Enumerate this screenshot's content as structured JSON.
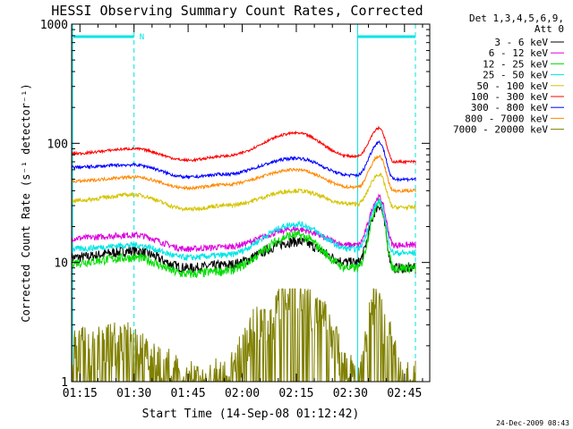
{
  "chart_data": {
    "type": "line",
    "title": "HESSI Observing Summary Count Rates, Corrected",
    "ylabel": "Corrected Count Rate (s⁻¹ detector⁻¹)",
    "xlabel": "Start Time (14-Sep-08 01:12:42)",
    "x_scale": "time",
    "y_scale": "log",
    "xlim": [
      "01:12:42",
      "02:52:00"
    ],
    "ylim": [
      1,
      1000
    ],
    "x_ticks": [
      "01:15",
      "01:30",
      "01:45",
      "02:00",
      "02:15",
      "02:30",
      "02:45"
    ],
    "x_tick_minutes": [
      75,
      90,
      105,
      120,
      135,
      150,
      165
    ],
    "y_ticks": [
      "1",
      "10",
      "100",
      "1000"
    ],
    "y_tick_values": [
      1,
      10,
      100,
      1000
    ],
    "legend_header": [
      "Det 1,3,4,5,6,9,",
      "Att 0"
    ],
    "legend_position": "right",
    "time_start_minutes": 72.7,
    "time_end_minutes": 172,
    "series": [
      {
        "name": "3 - 6 keV",
        "color": "#000000",
        "anchors": [
          [
            72.7,
            11
          ],
          [
            90,
            12.5
          ],
          [
            105,
            9
          ],
          [
            115,
            9.5
          ],
          [
            135,
            15
          ],
          [
            150,
            10
          ],
          [
            152,
            10
          ],
          [
            158,
            30
          ],
          [
            162,
            9
          ],
          [
            172,
            9
          ]
        ],
        "noise": 0.1
      },
      {
        "name": "6 - 12 keV",
        "color": "#dd00dd",
        "anchors": [
          [
            72.7,
            16
          ],
          [
            90,
            17
          ],
          [
            105,
            13
          ],
          [
            115,
            13.5
          ],
          [
            135,
            19
          ],
          [
            150,
            14
          ],
          [
            152,
            14
          ],
          [
            158,
            35
          ],
          [
            162,
            14
          ],
          [
            172,
            14
          ]
        ],
        "noise": 0.06
      },
      {
        "name": "12 - 25 keV",
        "color": "#00dd00",
        "anchors": [
          [
            72.7,
            10
          ],
          [
            90,
            11
          ],
          [
            105,
            8
          ],
          [
            115,
            8.5
          ],
          [
            135,
            17
          ],
          [
            150,
            9
          ],
          [
            152,
            9
          ],
          [
            158,
            32
          ],
          [
            162,
            9
          ],
          [
            172,
            9
          ]
        ],
        "noise": 0.09
      },
      {
        "name": "25 - 50 keV",
        "color": "#00e5e5",
        "anchors": [
          [
            72.7,
            13
          ],
          [
            90,
            14
          ],
          [
            105,
            11
          ],
          [
            115,
            11.5
          ],
          [
            135,
            21
          ],
          [
            150,
            13
          ],
          [
            152,
            13
          ],
          [
            158,
            32
          ],
          [
            162,
            12
          ],
          [
            172,
            12
          ]
        ],
        "noise": 0.06
      },
      {
        "name": "50 - 100 keV",
        "color": "#d4c400",
        "anchors": [
          [
            72.7,
            33
          ],
          [
            90,
            37
          ],
          [
            105,
            28
          ],
          [
            115,
            30
          ],
          [
            135,
            40
          ],
          [
            150,
            31
          ],
          [
            152,
            31
          ],
          [
            158,
            55
          ],
          [
            162,
            29
          ],
          [
            172,
            29
          ]
        ],
        "noise": 0.04
      },
      {
        "name": "100 - 300 keV",
        "color": "#ff0000",
        "anchors": [
          [
            72.7,
            82
          ],
          [
            90,
            90
          ],
          [
            105,
            72
          ],
          [
            115,
            78
          ],
          [
            135,
            122
          ],
          [
            150,
            78
          ],
          [
            152,
            78
          ],
          [
            158,
            135
          ],
          [
            162,
            70
          ],
          [
            172,
            70
          ]
        ],
        "noise": 0.025
      },
      {
        "name": "300 - 800 keV",
        "color": "#0000ff",
        "anchors": [
          [
            72.7,
            63
          ],
          [
            90,
            66
          ],
          [
            105,
            52
          ],
          [
            115,
            55
          ],
          [
            135,
            75
          ],
          [
            150,
            54
          ],
          [
            152,
            54
          ],
          [
            158,
            102
          ],
          [
            162,
            50
          ],
          [
            172,
            50
          ]
        ],
        "noise": 0.03
      },
      {
        "name": "800 - 7000 keV",
        "color": "#ff8800",
        "anchors": [
          [
            72.7,
            48
          ],
          [
            90,
            52
          ],
          [
            105,
            42
          ],
          [
            115,
            45
          ],
          [
            135,
            60
          ],
          [
            150,
            43
          ],
          [
            152,
            43
          ],
          [
            158,
            78
          ],
          [
            162,
            40
          ],
          [
            172,
            40
          ]
        ],
        "noise": 0.03
      },
      {
        "name": "7000 - 20000 keV",
        "color": "#808000",
        "step": true,
        "anchors": [
          [
            72.7,
            1.8
          ],
          [
            75,
            2
          ],
          [
            90,
            2.2
          ],
          [
            97,
            1.4
          ],
          [
            105,
            1
          ],
          [
            115,
            1.1
          ],
          [
            125,
            3
          ],
          [
            135,
            6
          ],
          [
            142,
            3.5
          ],
          [
            150,
            1.2
          ],
          [
            152,
            1
          ],
          [
            157,
            5
          ],
          [
            160,
            2.5
          ],
          [
            165,
            1
          ],
          [
            172,
            1
          ]
        ],
        "noise": 0.0
      }
    ]
  },
  "attenuator_bars": [
    {
      "start_minutes": 72.7,
      "end_minutes": 90,
      "label": "N"
    },
    {
      "start_minutes": 152,
      "end_minutes": 172,
      "label": ""
    }
  ],
  "vertical_markers": {
    "solid_minutes": [
      72.7,
      152
    ],
    "dashed_minutes": [
      90,
      172
    ]
  },
  "footer_date": "24-Dec-2009 08:43"
}
